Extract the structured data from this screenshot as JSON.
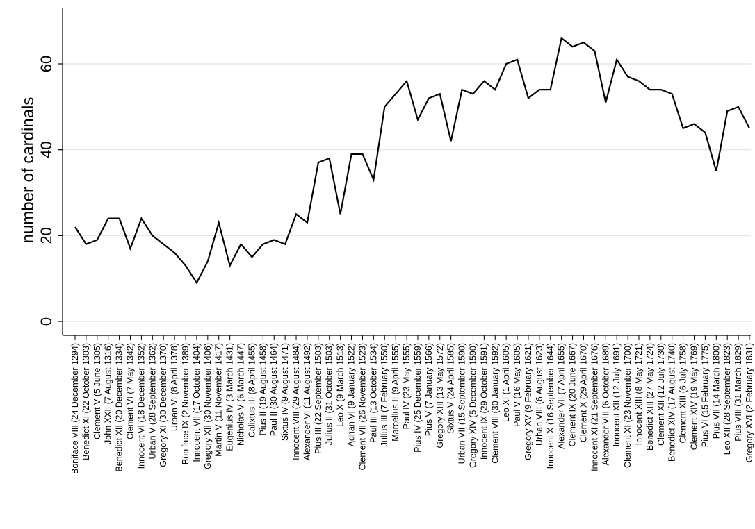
{
  "chart_data": {
    "type": "line",
    "title": "",
    "xlabel": "",
    "ylabel": "number of cardinals",
    "ylim": [
      0,
      70
    ],
    "yticks": [
      0,
      20,
      40,
      60
    ],
    "grid": true,
    "line_color": "#000000",
    "grid_color": "#e6e6e6",
    "x": [
      "Boniface VIII (24 December 1294)",
      "Benedict XI (22 October 1303)",
      "Clement V (5 June 1305)",
      "John XXII (7 August 1316)",
      "Benedict XII (20 December 1334)",
      "Clement VI (7 May 1342)",
      "Innocent VI (18 December 1352)",
      "Urban V (28 September 1362)",
      "Gregory XI (30 December 1370)",
      "Urban VI (8 April 1378)",
      "Boniface IX (2 November 1389)",
      "Innocent VII (17 October 1404)",
      "Gregory XII (30 November 1406)",
      "Martin V (11 November 1417)",
      "Eugenius IV (3 March 1431)",
      "Nicholas V (6 March 1447)",
      "Calixtus III (8 April 1455)",
      "Pius II (19 August 1458)",
      "Paul II (30 August 1464)",
      "Sixtus IV (9 August 1471)",
      "Innocent VIII (29 August 1484)",
      "Alexander VI (11 August 1492)",
      "Pius III (22 September 1503)",
      "Julius II (31 October 1503)",
      "Leo X (9 March 1513)",
      "Adrian VI (9 January 1522)",
      "Clement VII (26 November 1523)",
      "Paul III (13 October 1534)",
      "Julius III (7 February 1550)",
      "Marcellus II (9 April 1555)",
      "Paul IV (23 May 1555)",
      "Pius IV (25 December 1559)",
      "Pius V (7 January 1566)",
      "Gregory XIII (13 May 1572)",
      "Sixtus V (24 April 1585)",
      "Urban VII (15 September 1590)",
      "Gregory XIV (5 December 1590)",
      "Innocent IX (29 October 1591)",
      "Clement VIII (30 January 1592)",
      "Leo XI (1 April 1605)",
      "Paul V (16 May 1605)",
      "Gregory XV (9 February 1621)",
      "Urban VIII (6 August 1623)",
      "Innocent X (16 September 1644)",
      "Alexander VII (7 April 1655)",
      "Clement IX (20 June 1667)",
      "Clement X (29 April 1670)",
      "Innocent XI (21 September 1676)",
      "Alexander VIII (6 October 1689)",
      "Innocent XII (12 July 1691)",
      "Clement XI (23 November 1700)",
      "Innocent XIII (8 May 1721)",
      "Benedict XIII (27 May 1724)",
      "Clement XII (12 July 1730)",
      "Benedict XIV (17 August 1740)",
      "Clement XIII (6 July 1758)",
      "Clement XIV (19 May 1769)",
      "Pius VI (15 February 1775)",
      "Pius VII (14 March 1800)",
      "Leo XII (28 September 1823)",
      "Pius VIII (31 March 1829)",
      "Gregory XVI (2 February 1831)"
    ],
    "series": [
      {
        "values": [
          22,
          18,
          19,
          24,
          24,
          17,
          24,
          20,
          18,
          16,
          13,
          9,
          14,
          23,
          13,
          18,
          15,
          18,
          19,
          18,
          25,
          23,
          37,
          38,
          25,
          39,
          39,
          33,
          50,
          53,
          56,
          47,
          52,
          53,
          42,
          54,
          53,
          56,
          54,
          60,
          61,
          52,
          54,
          54,
          66,
          64,
          65,
          63,
          51,
          61,
          57,
          56,
          54,
          54,
          53,
          45,
          46,
          44,
          35,
          49,
          50,
          45
        ]
      }
    ]
  }
}
